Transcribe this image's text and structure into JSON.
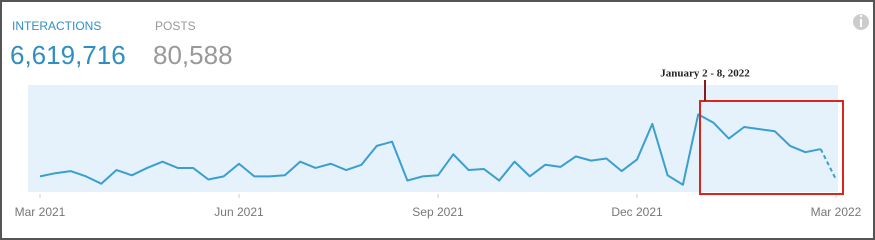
{
  "header": {
    "metrics": [
      {
        "label": "INTERACTIONS",
        "value": "6,619,716"
      },
      {
        "label": "POSTS",
        "value": "80,588"
      }
    ]
  },
  "chart_data": {
    "type": "line",
    "annotation": "January 2 - 8, 2022",
    "color": "#3a9fd0",
    "values": [
      13,
      16,
      18,
      13,
      6,
      19,
      14,
      21,
      27,
      21,
      21,
      10,
      13,
      25,
      13,
      13,
      14,
      27,
      21,
      25,
      19,
      24,
      42,
      46,
      9,
      13,
      14,
      34,
      19,
      20,
      9,
      27,
      13,
      24,
      22,
      32,
      28,
      30,
      18,
      29,
      63,
      14,
      5,
      72,
      64,
      49,
      60,
      58,
      56,
      42,
      36,
      39,
      10
    ],
    "ylim": [
      0,
      100
    ],
    "xlim": [
      0,
      52
    ],
    "xticks": [
      {
        "value": 0,
        "label": "Mar 2021"
      },
      {
        "value": 13,
        "label": "Jun 2021"
      },
      {
        "value": 26,
        "label": "Sep 2021"
      },
      {
        "value": 39,
        "label": "Dec 2021"
      },
      {
        "value": 52,
        "label": "Mar 2022"
      }
    ]
  }
}
